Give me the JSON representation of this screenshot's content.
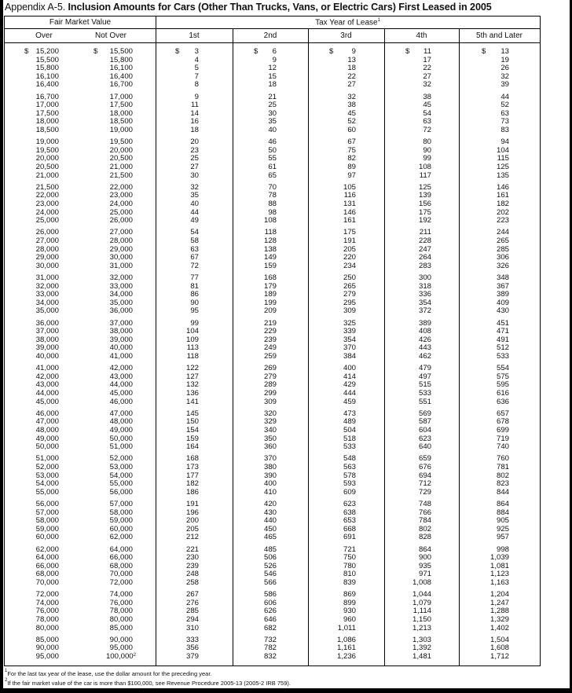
{
  "title": {
    "prefix": "Appendix A-5.",
    "main": "Inclusion Amounts for Cars (Other Than Trucks, Vans, or Electric Cars) First Leased in 2005"
  },
  "table": {
    "group_headers": {
      "fmv": "Fair Market Value",
      "tax_year": "Tax Year of Lease",
      "tax_year_sup": "1"
    },
    "columns": [
      "Over",
      "Not Over",
      "1st",
      "2nd",
      "3rd",
      "4th",
      "5th and Later"
    ],
    "currency_symbol": "$",
    "groups": [
      [
        [
          "15,200",
          "15,500",
          "3",
          "6",
          "9",
          "11",
          "13"
        ],
        [
          "15,500",
          "15,800",
          "4",
          "9",
          "13",
          "17",
          "19"
        ],
        [
          "15,800",
          "16,100",
          "5",
          "12",
          "18",
          "22",
          "26"
        ],
        [
          "16,100",
          "16,400",
          "7",
          "15",
          "22",
          "27",
          "32"
        ],
        [
          "16,400",
          "16,700",
          "8",
          "18",
          "27",
          "32",
          "39"
        ]
      ],
      [
        [
          "16,700",
          "17,000",
          "9",
          "21",
          "32",
          "38",
          "44"
        ],
        [
          "17,000",
          "17,500",
          "11",
          "25",
          "38",
          "45",
          "52"
        ],
        [
          "17,500",
          "18,000",
          "14",
          "30",
          "45",
          "54",
          "63"
        ],
        [
          "18,000",
          "18,500",
          "16",
          "35",
          "52",
          "63",
          "73"
        ],
        [
          "18,500",
          "19,000",
          "18",
          "40",
          "60",
          "72",
          "83"
        ]
      ],
      [
        [
          "19,000",
          "19,500",
          "20",
          "46",
          "67",
          "80",
          "94"
        ],
        [
          "19,500",
          "20,000",
          "23",
          "50",
          "75",
          "90",
          "104"
        ],
        [
          "20,000",
          "20,500",
          "25",
          "55",
          "82",
          "99",
          "115"
        ],
        [
          "20,500",
          "21,000",
          "27",
          "61",
          "89",
          "108",
          "125"
        ],
        [
          "21,000",
          "21,500",
          "30",
          "65",
          "97",
          "117",
          "135"
        ]
      ],
      [
        [
          "21,500",
          "22,000",
          "32",
          "70",
          "105",
          "125",
          "146"
        ],
        [
          "22,000",
          "23,000",
          "35",
          "78",
          "116",
          "139",
          "161"
        ],
        [
          "23,000",
          "24,000",
          "40",
          "88",
          "131",
          "156",
          "182"
        ],
        [
          "24,000",
          "25,000",
          "44",
          "98",
          "146",
          "175",
          "202"
        ],
        [
          "25,000",
          "26,000",
          "49",
          "108",
          "161",
          "192",
          "223"
        ]
      ],
      [
        [
          "26,000",
          "27,000",
          "54",
          "118",
          "175",
          "211",
          "244"
        ],
        [
          "27,000",
          "28,000",
          "58",
          "128",
          "191",
          "228",
          "265"
        ],
        [
          "28,000",
          "29,000",
          "63",
          "138",
          "205",
          "247",
          "285"
        ],
        [
          "29,000",
          "30,000",
          "67",
          "149",
          "220",
          "264",
          "306"
        ],
        [
          "30,000",
          "31,000",
          "72",
          "159",
          "234",
          "283",
          "326"
        ]
      ],
      [
        [
          "31,000",
          "32,000",
          "77",
          "168",
          "250",
          "300",
          "348"
        ],
        [
          "32,000",
          "33,000",
          "81",
          "179",
          "265",
          "318",
          "367"
        ],
        [
          "33,000",
          "34,000",
          "86",
          "189",
          "279",
          "336",
          "389"
        ],
        [
          "34,000",
          "35,000",
          "90",
          "199",
          "295",
          "354",
          "409"
        ],
        [
          "35,000",
          "36,000",
          "95",
          "209",
          "309",
          "372",
          "430"
        ]
      ],
      [
        [
          "36,000",
          "37,000",
          "99",
          "219",
          "325",
          "389",
          "451"
        ],
        [
          "37,000",
          "38,000",
          "104",
          "229",
          "339",
          "408",
          "471"
        ],
        [
          "38,000",
          "39,000",
          "109",
          "239",
          "354",
          "426",
          "491"
        ],
        [
          "39,000",
          "40,000",
          "113",
          "249",
          "370",
          "443",
          "512"
        ],
        [
          "40,000",
          "41,000",
          "118",
          "259",
          "384",
          "462",
          "533"
        ]
      ],
      [
        [
          "41,000",
          "42,000",
          "122",
          "269",
          "400",
          "479",
          "554"
        ],
        [
          "42,000",
          "43,000",
          "127",
          "279",
          "414",
          "497",
          "575"
        ],
        [
          "43,000",
          "44,000",
          "132",
          "289",
          "429",
          "515",
          "595"
        ],
        [
          "44,000",
          "45,000",
          "136",
          "299",
          "444",
          "533",
          "616"
        ],
        [
          "45,000",
          "46,000",
          "141",
          "309",
          "459",
          "551",
          "636"
        ]
      ],
      [
        [
          "46,000",
          "47,000",
          "145",
          "320",
          "473",
          "569",
          "657"
        ],
        [
          "47,000",
          "48,000",
          "150",
          "329",
          "489",
          "587",
          "678"
        ],
        [
          "48,000",
          "49,000",
          "154",
          "340",
          "504",
          "604",
          "699"
        ],
        [
          "49,000",
          "50,000",
          "159",
          "350",
          "518",
          "623",
          "719"
        ],
        [
          "50,000",
          "51,000",
          "164",
          "360",
          "533",
          "640",
          "740"
        ]
      ],
      [
        [
          "51,000",
          "52,000",
          "168",
          "370",
          "548",
          "659",
          "760"
        ],
        [
          "52,000",
          "53,000",
          "173",
          "380",
          "563",
          "676",
          "781"
        ],
        [
          "53,000",
          "54,000",
          "177",
          "390",
          "578",
          "694",
          "802"
        ],
        [
          "54,000",
          "55,000",
          "182",
          "400",
          "593",
          "712",
          "823"
        ],
        [
          "55,000",
          "56,000",
          "186",
          "410",
          "609",
          "729",
          "844"
        ]
      ],
      [
        [
          "56,000",
          "57,000",
          "191",
          "420",
          "623",
          "748",
          "864"
        ],
        [
          "57,000",
          "58,000",
          "196",
          "430",
          "638",
          "766",
          "884"
        ],
        [
          "58,000",
          "59,000",
          "200",
          "440",
          "653",
          "784",
          "905"
        ],
        [
          "59,000",
          "60,000",
          "205",
          "450",
          "668",
          "802",
          "925"
        ],
        [
          "60,000",
          "62,000",
          "212",
          "465",
          "691",
          "828",
          "957"
        ]
      ],
      [
        [
          "62,000",
          "64,000",
          "221",
          "485",
          "721",
          "864",
          "998"
        ],
        [
          "64,000",
          "66,000",
          "230",
          "506",
          "750",
          "900",
          "1,039"
        ],
        [
          "66,000",
          "68,000",
          "239",
          "526",
          "780",
          "935",
          "1,081"
        ],
        [
          "68,000",
          "70,000",
          "248",
          "546",
          "810",
          "971",
          "1,123"
        ],
        [
          "70,000",
          "72,000",
          "258",
          "566",
          "839",
          "1,008",
          "1,163"
        ]
      ],
      [
        [
          "72,000",
          "74,000",
          "267",
          "586",
          "869",
          "1,044",
          "1,204"
        ],
        [
          "74,000",
          "76,000",
          "276",
          "606",
          "899",
          "1,079",
          "1,247"
        ],
        [
          "76,000",
          "78,000",
          "285",
          "626",
          "930",
          "1,114",
          "1,288"
        ],
        [
          "78,000",
          "80,000",
          "294",
          "646",
          "960",
          "1,150",
          "1,329"
        ],
        [
          "80,000",
          "85,000",
          "310",
          "682",
          "1,011",
          "1,213",
          "1,402"
        ]
      ],
      [
        [
          "85,000",
          "90,000",
          "333",
          "732",
          "1,086",
          "1,303",
          "1,504"
        ],
        [
          "90,000",
          "95,000",
          "356",
          "782",
          "1,161",
          "1,392",
          "1,608"
        ],
        [
          "95,000",
          "100,000",
          "379",
          "832",
          "1,236",
          "1,481",
          "1,712"
        ]
      ]
    ],
    "last_row_sup": "2"
  },
  "footnotes": [
    {
      "mark": "1",
      "text": "For the last tax year of the lease, use the dollar amount for the preceding year."
    },
    {
      "mark": "2",
      "text": "If the fair market value of the car is more than $100,000, see Revenue Procedure 2005-13 (2005-2 IRB 759)."
    }
  ]
}
